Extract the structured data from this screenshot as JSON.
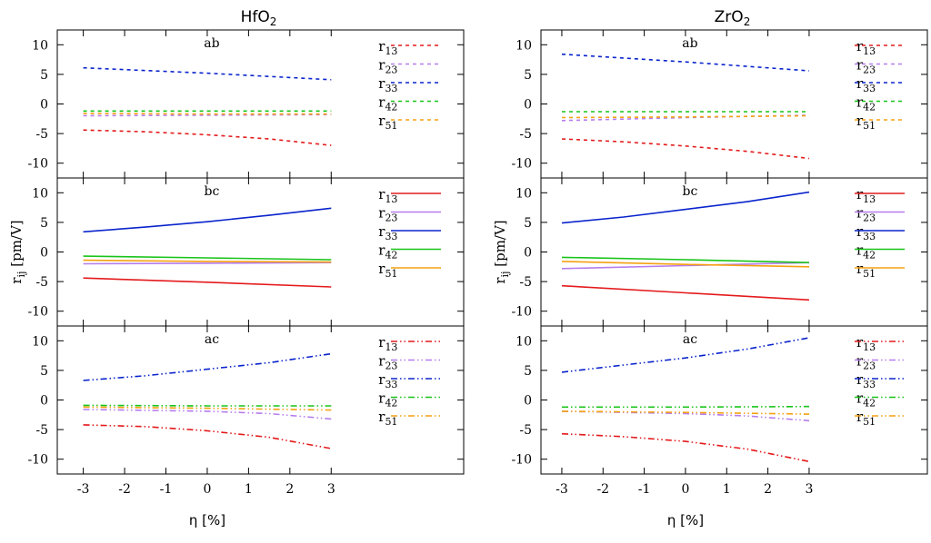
{
  "chart_data": [
    {
      "type": "line",
      "title_main": "HfO",
      "title_sub": "2",
      "xlabel": "η [%]",
      "ylabel_main": "r",
      "ylabel_sub": "ij",
      "ylabel_rest": " [pm/V]",
      "xlim": [
        -3.8,
        3.8
      ],
      "ylim": [
        -12.5,
        12.5
      ],
      "x_ticks": [
        "-3",
        "-2",
        "-1",
        "0",
        "1",
        "2",
        "3"
      ],
      "y_ticks": [
        "10",
        "5",
        "0",
        "-5",
        "-10"
      ],
      "x": [
        -3,
        3
      ],
      "panels": [
        {
          "label": "ab",
          "line_style": "dashed",
          "series": [
            {
              "name": "r",
              "sub": "13",
              "color": "#e41a1c",
              "points": [
                [
                  -3,
                  -4.4
                ],
                [
                  -1.5,
                  -4.7
                ],
                [
                  0,
                  -5.2
                ],
                [
                  1.5,
                  -5.9
                ],
                [
                  3,
                  -7.0
                ]
              ]
            },
            {
              "name": "r",
              "sub": "23",
              "color": "#b57ded",
              "points": [
                [
                  -3,
                  -2.0
                ],
                [
                  0,
                  -1.9
                ],
                [
                  3,
                  -1.8
                ]
              ]
            },
            {
              "name": "r",
              "sub": "33",
              "color": "#0a24cc",
              "points": [
                [
                  -3,
                  6.1
                ],
                [
                  0,
                  5.2
                ],
                [
                  3,
                  4.1
                ]
              ]
            },
            {
              "name": "r",
              "sub": "42",
              "color": "#19c419",
              "points": [
                [
                  -3,
                  -1.2
                ],
                [
                  0,
                  -1.2
                ],
                [
                  3,
                  -1.2
                ]
              ]
            },
            {
              "name": "r",
              "sub": "51",
              "color": "#f5a112",
              "points": [
                [
                  -3,
                  -1.6
                ],
                [
                  0,
                  -1.7
                ],
                [
                  3,
                  -1.7
                ]
              ]
            }
          ]
        },
        {
          "label": "bc",
          "line_style": "solid",
          "series": [
            {
              "name": "r",
              "sub": "13",
              "color": "#e41a1c",
              "points": [
                [
                  -3,
                  -4.4
                ],
                [
                  0,
                  -5.1
                ],
                [
                  3,
                  -5.9
                ]
              ]
            },
            {
              "name": "r",
              "sub": "23",
              "color": "#b57ded",
              "points": [
                [
                  -3,
                  -2.0
                ],
                [
                  0,
                  -1.9
                ],
                [
                  3,
                  -1.8
                ]
              ]
            },
            {
              "name": "r",
              "sub": "33",
              "color": "#0a24cc",
              "points": [
                [
                  -3,
                  3.4
                ],
                [
                  -1.5,
                  4.2
                ],
                [
                  0,
                  5.1
                ],
                [
                  1.5,
                  6.2
                ],
                [
                  3,
                  7.4
                ]
              ]
            },
            {
              "name": "r",
              "sub": "42",
              "color": "#19c419",
              "points": [
                [
                  -3,
                  -0.7
                ],
                [
                  0,
                  -1.0
                ],
                [
                  3,
                  -1.3
                ]
              ]
            },
            {
              "name": "r",
              "sub": "51",
              "color": "#f5a112",
              "points": [
                [
                  -3,
                  -1.4
                ],
                [
                  0,
                  -1.6
                ],
                [
                  3,
                  -1.7
                ]
              ]
            }
          ]
        },
        {
          "label": "ac",
          "line_style": "dashdotdot",
          "series": [
            {
              "name": "r",
              "sub": "13",
              "color": "#e41a1c",
              "points": [
                [
                  -3,
                  -4.2
                ],
                [
                  -1.5,
                  -4.5
                ],
                [
                  0,
                  -5.2
                ],
                [
                  1.5,
                  -6.3
                ],
                [
                  3,
                  -8.2
                ]
              ]
            },
            {
              "name": "r",
              "sub": "23",
              "color": "#b57ded",
              "points": [
                [
                  -3,
                  -1.6
                ],
                [
                  0,
                  -1.9
                ],
                [
                  1.5,
                  -2.3
                ],
                [
                  3,
                  -3.2
                ]
              ]
            },
            {
              "name": "r",
              "sub": "33",
              "color": "#0a24cc",
              "points": [
                [
                  -3,
                  3.3
                ],
                [
                  -1.5,
                  4.1
                ],
                [
                  0,
                  5.2
                ],
                [
                  1.5,
                  6.3
                ],
                [
                  3,
                  7.8
                ]
              ]
            },
            {
              "name": "r",
              "sub": "42",
              "color": "#19c419",
              "points": [
                [
                  -3,
                  -0.9
                ],
                [
                  0,
                  -1.0
                ],
                [
                  3,
                  -1.0
                ]
              ]
            },
            {
              "name": "r",
              "sub": "51",
              "color": "#f5a112",
              "points": [
                [
                  -3,
                  -1.2
                ],
                [
                  0,
                  -1.4
                ],
                [
                  3,
                  -1.7
                ]
              ]
            }
          ]
        }
      ]
    },
    {
      "type": "line",
      "title_main": "ZrO",
      "title_sub": "2",
      "xlabel": "η [%]",
      "ylabel_main": "r",
      "ylabel_sub": "ij",
      "ylabel_rest": " [pm/V]",
      "xlim": [
        -3.8,
        3.8
      ],
      "ylim": [
        -12.5,
        12.5
      ],
      "x_ticks": [
        "-3",
        "-2",
        "-1",
        "0",
        "1",
        "2",
        "3"
      ],
      "y_ticks": [
        "10",
        "5",
        "0",
        "-5",
        "-10"
      ],
      "x": [
        -3,
        3
      ],
      "panels": [
        {
          "label": "ab",
          "line_style": "dashed",
          "series": [
            {
              "name": "r",
              "sub": "13",
              "color": "#e41a1c",
              "points": [
                [
                  -3,
                  -5.9
                ],
                [
                  -1.5,
                  -6.4
                ],
                [
                  0,
                  -7.1
                ],
                [
                  1.5,
                  -8.0
                ],
                [
                  3,
                  -9.2
                ]
              ]
            },
            {
              "name": "r",
              "sub": "23",
              "color": "#b57ded",
              "points": [
                [
                  -3,
                  -2.8
                ],
                [
                  0,
                  -2.3
                ],
                [
                  3,
                  -1.9
                ]
              ]
            },
            {
              "name": "r",
              "sub": "33",
              "color": "#0a24cc",
              "points": [
                [
                  -3,
                  8.4
                ],
                [
                  0,
                  7.1
                ],
                [
                  3,
                  5.6
                ]
              ]
            },
            {
              "name": "r",
              "sub": "42",
              "color": "#19c419",
              "points": [
                [
                  -3,
                  -1.3
                ],
                [
                  0,
                  -1.3
                ],
                [
                  3,
                  -1.3
                ]
              ]
            },
            {
              "name": "r",
              "sub": "51",
              "color": "#f5a112",
              "points": [
                [
                  -3,
                  -2.3
                ],
                [
                  0,
                  -2.2
                ],
                [
                  3,
                  -2.0
                ]
              ]
            }
          ]
        },
        {
          "label": "bc",
          "line_style": "solid",
          "series": [
            {
              "name": "r",
              "sub": "13",
              "color": "#e41a1c",
              "points": [
                [
                  -3,
                  -5.7
                ],
                [
                  0,
                  -6.9
                ],
                [
                  3,
                  -8.1
                ]
              ]
            },
            {
              "name": "r",
              "sub": "23",
              "color": "#b57ded",
              "points": [
                [
                  -3,
                  -2.8
                ],
                [
                  0,
                  -2.3
                ],
                [
                  3,
                  -1.8
                ]
              ]
            },
            {
              "name": "r",
              "sub": "33",
              "color": "#0a24cc",
              "points": [
                [
                  -3,
                  4.9
                ],
                [
                  -1.5,
                  5.9
                ],
                [
                  0,
                  7.2
                ],
                [
                  1.5,
                  8.5
                ],
                [
                  3,
                  10.1
                ]
              ]
            },
            {
              "name": "r",
              "sub": "42",
              "color": "#19c419",
              "points": [
                [
                  -3,
                  -0.9
                ],
                [
                  0,
                  -1.3
                ],
                [
                  3,
                  -1.8
                ]
              ]
            },
            {
              "name": "r",
              "sub": "51",
              "color": "#f5a112",
              "points": [
                [
                  -3,
                  -1.6
                ],
                [
                  0,
                  -2.1
                ],
                [
                  3,
                  -2.5
                ]
              ]
            }
          ]
        },
        {
          "label": "ac",
          "line_style": "dashdotdot",
          "series": [
            {
              "name": "r",
              "sub": "13",
              "color": "#e41a1c",
              "points": [
                [
                  -3,
                  -5.7
                ],
                [
                  -1.5,
                  -6.2
                ],
                [
                  0,
                  -7.0
                ],
                [
                  1.5,
                  -8.3
                ],
                [
                  3,
                  -10.4
                ]
              ]
            },
            {
              "name": "r",
              "sub": "23",
              "color": "#b57ded",
              "points": [
                [
                  -3,
                  -1.9
                ],
                [
                  0,
                  -2.3
                ],
                [
                  1.5,
                  -2.7
                ],
                [
                  3,
                  -3.5
                ]
              ]
            },
            {
              "name": "r",
              "sub": "33",
              "color": "#0a24cc",
              "points": [
                [
                  -3,
                  4.7
                ],
                [
                  -1.5,
                  5.9
                ],
                [
                  0,
                  7.1
                ],
                [
                  1.5,
                  8.6
                ],
                [
                  3,
                  10.5
                ]
              ]
            },
            {
              "name": "r",
              "sub": "42",
              "color": "#19c419",
              "points": [
                [
                  -3,
                  -1.2
                ],
                [
                  0,
                  -1.2
                ],
                [
                  3,
                  -1.1
                ]
              ]
            },
            {
              "name": "r",
              "sub": "51",
              "color": "#f5a112",
              "points": [
                [
                  -3,
                  -1.9
                ],
                [
                  0,
                  -2.1
                ],
                [
                  3,
                  -2.4
                ]
              ]
            }
          ]
        }
      ]
    }
  ]
}
